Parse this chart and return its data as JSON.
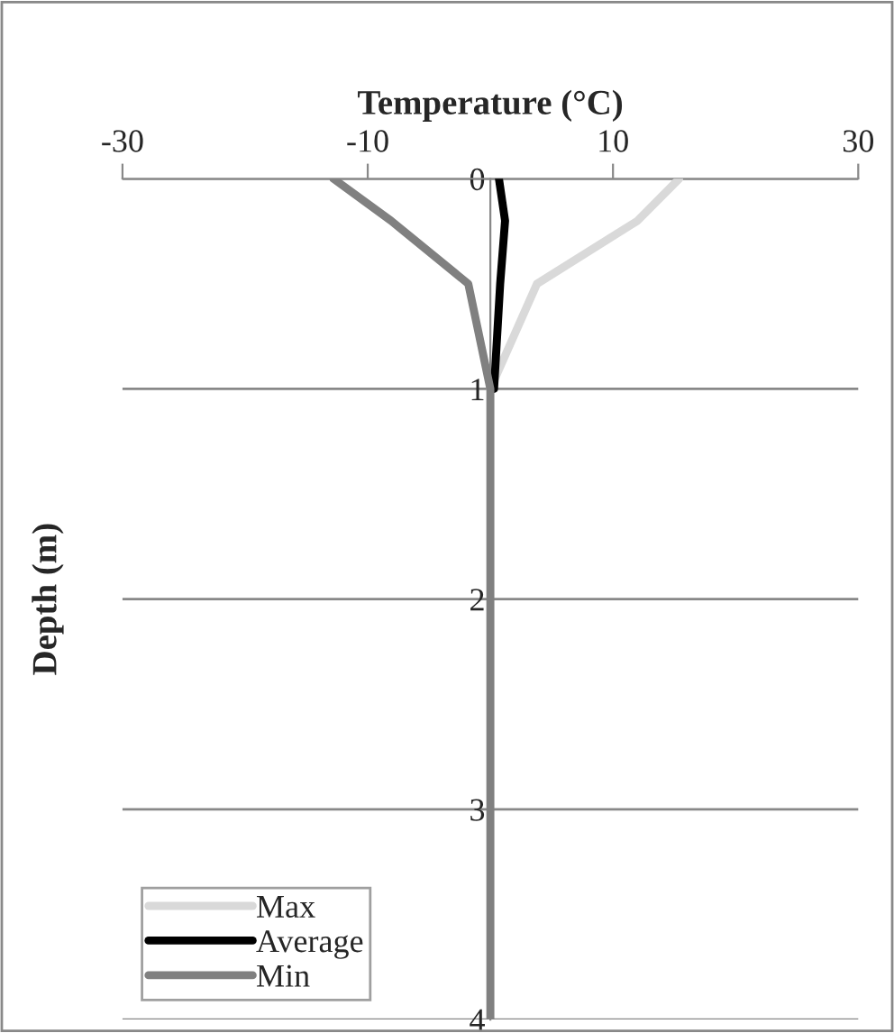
{
  "chart_data": {
    "type": "line",
    "orientation": "horizontal",
    "xlabel": "Temperature (°C)",
    "ylabel": "Depth (m)",
    "x": [
      0,
      0.2,
      0.5,
      1,
      2,
      3,
      4
    ],
    "series": [
      {
        "name": "Max",
        "color": "#d9d9d9",
        "values": [
          15.4,
          12,
          3.8,
          0,
          null,
          null,
          null
        ]
      },
      {
        "name": "Average",
        "color": "#000000",
        "values": [
          0.7,
          1.2,
          0.8,
          0.3,
          null,
          null,
          null
        ]
      },
      {
        "name": "Min",
        "color": "#808080",
        "values": [
          -12.8,
          -8.1,
          -1.8,
          0,
          0,
          0,
          0
        ]
      }
    ],
    "xlim": [
      -30,
      30
    ],
    "xticks": [
      -30,
      -10,
      10,
      30
    ],
    "ylim": [
      4,
      0
    ],
    "yticks": [
      0,
      1,
      2,
      3,
      4
    ],
    "grid": "y",
    "legend": "bottom left",
    "marker": "none",
    "line_style": "solid"
  }
}
